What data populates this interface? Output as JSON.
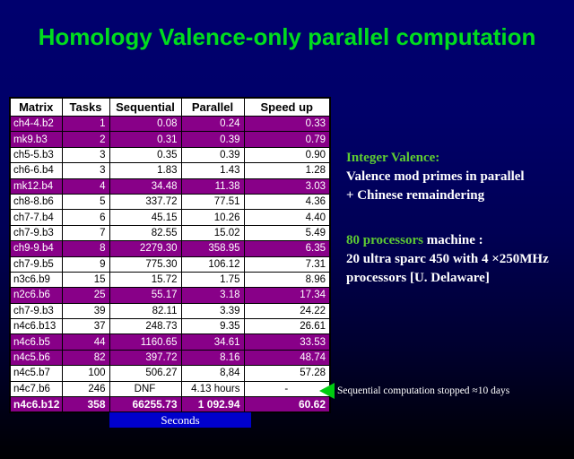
{
  "title": "Homology Valence-only parallel computation",
  "table": {
    "columns": [
      "Matrix",
      "Tasks",
      "Sequential",
      "Parallel",
      "Speed up"
    ],
    "rows": [
      {
        "matrix": "ch4-4.b2",
        "tasks": "1",
        "sequential": "0.08",
        "parallel": "0.24",
        "speedup": "0.33",
        "highlight": true
      },
      {
        "matrix": "mk9.b3",
        "tasks": "2",
        "sequential": "0.31",
        "parallel": "0.39",
        "speedup": "0.79",
        "highlight": true
      },
      {
        "matrix": "ch5-5.b3",
        "tasks": "3",
        "sequential": "0.35",
        "parallel": "0.39",
        "speedup": "0.90",
        "highlight": false
      },
      {
        "matrix": "ch6-6.b4",
        "tasks": "3",
        "sequential": "1.83",
        "parallel": "1.43",
        "speedup": "1.28",
        "highlight": false
      },
      {
        "matrix": "mk12.b4",
        "tasks": "4",
        "sequential": "34.48",
        "parallel": "11.38",
        "speedup": "3.03",
        "highlight": true
      },
      {
        "matrix": "ch8-8.b6",
        "tasks": "5",
        "sequential": "337.72",
        "parallel": "77.51",
        "speedup": "4.36",
        "highlight": false
      },
      {
        "matrix": "ch7-7.b4",
        "tasks": "6",
        "sequential": "45.15",
        "parallel": "10.26",
        "speedup": "4.40",
        "highlight": false
      },
      {
        "matrix": "ch7-9.b3",
        "tasks": "7",
        "sequential": "82.55",
        "parallel": "15.02",
        "speedup": "5.49",
        "highlight": false
      },
      {
        "matrix": "ch9-9.b4",
        "tasks": "8",
        "sequential": "2279.30",
        "parallel": "358.95",
        "speedup": "6.35",
        "highlight": true
      },
      {
        "matrix": "ch7-9.b5",
        "tasks": "9",
        "sequential": "775.30",
        "parallel": "106.12",
        "speedup": "7.31",
        "highlight": false
      },
      {
        "matrix": "n3c6.b9",
        "tasks": "15",
        "sequential": "15.72",
        "parallel": "1.75",
        "speedup": "8.96",
        "highlight": false
      },
      {
        "matrix": "n2c6.b6",
        "tasks": "25",
        "sequential": "55.17",
        "parallel": "3.18",
        "speedup": "17.34",
        "highlight": true
      },
      {
        "matrix": "ch7-9.b3",
        "tasks": "39",
        "sequential": "82.11",
        "parallel": "3.39",
        "speedup": "24.22",
        "highlight": false
      },
      {
        "matrix": "n4c6.b13",
        "tasks": "37",
        "sequential": "248.73",
        "parallel": "9.35",
        "speedup": "26.61",
        "highlight": false
      },
      {
        "matrix": "n4c6.b5",
        "tasks": "44",
        "sequential": "1160.65",
        "parallel": "34.61",
        "speedup": "33.53",
        "highlight": true
      },
      {
        "matrix": "n4c5.b6",
        "tasks": "82",
        "sequential": "397.72",
        "parallel": "8.16",
        "speedup": "48.74",
        "highlight": true
      },
      {
        "matrix": "n4c5.b7",
        "tasks": "100",
        "sequential": "506.27",
        "parallel": "8,84",
        "speedup": "57.28",
        "highlight": false
      },
      {
        "matrix": "n4c7.b6",
        "tasks": "246",
        "sequential": "DNF",
        "parallel": "4.13 hours",
        "speedup": "-",
        "highlight": false,
        "center": [
          "sequential",
          "speedup"
        ]
      },
      {
        "matrix": "n4c6.b12",
        "tasks": "358",
        "sequential": "66255.73",
        "parallel": "1 092.94",
        "speedup": "60.62",
        "highlight": true,
        "bold": true
      }
    ],
    "footer_label": "Seconds"
  },
  "notes": {
    "block1": {
      "heading": "Integer Valence:",
      "line1": "Valence mod primes in parallel",
      "line2": "+ Chinese remaindering"
    },
    "block2": {
      "highlight": "80 processors",
      "rest": " machine :",
      "line1": "20 ultra sparc 450 with 4 ×250MHz",
      "line2": "processors [U. Delaware]"
    }
  },
  "annotation": {
    "text": "Sequential computation stopped ≈10 days"
  },
  "colors": {
    "background_top": "#00006E",
    "background_bottom": "#000000",
    "title_green": "#00DC1E",
    "row_purple": "#880088",
    "note_green": "#5FCC33",
    "seconds_blue": "#0000CC",
    "arrow_green": "#00CC11"
  }
}
